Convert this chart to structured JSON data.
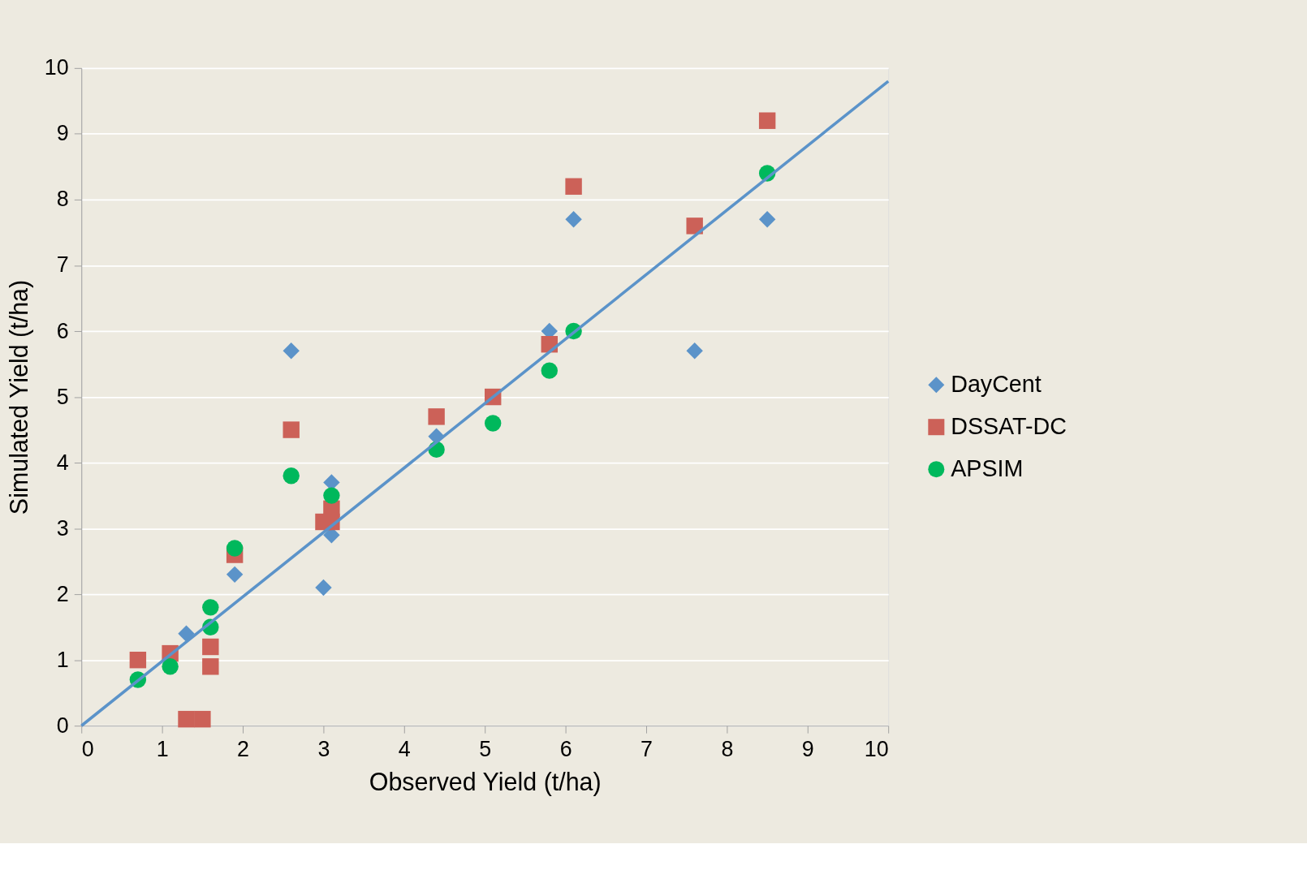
{
  "chart_data": {
    "type": "scatter",
    "xlabel": "Observed Yield (t/ha)",
    "ylabel": "Simulated Yield (t/ha)",
    "xlim": [
      0,
      10
    ],
    "ylim": [
      0,
      10
    ],
    "xticks": [
      0,
      1,
      2,
      3,
      4,
      5,
      6,
      7,
      8,
      9,
      10
    ],
    "yticks": [
      0,
      1,
      2,
      3,
      4,
      5,
      6,
      7,
      8,
      9,
      10
    ],
    "grid": "y",
    "legend": "right",
    "series": [
      {
        "name": "DayCent",
        "color": "#5b93c9",
        "marker": "diamond",
        "x": [
          1.3,
          1.9,
          2.6,
          3.0,
          3.1,
          3.1,
          4.4,
          5.8,
          6.1,
          7.6,
          8.5
        ],
        "values": [
          1.4,
          2.3,
          5.7,
          2.1,
          3.7,
          2.9,
          4.4,
          6.0,
          7.7,
          5.7,
          7.7
        ]
      },
      {
        "name": "DSSAT-DC",
        "color": "#cc6158",
        "marker": "square",
        "x": [
          0.7,
          1.1,
          1.3,
          1.5,
          1.6,
          1.6,
          1.9,
          2.6,
          3.0,
          3.1,
          3.1,
          4.4,
          5.1,
          5.8,
          6.1,
          7.6,
          8.5
        ],
        "values": [
          1.0,
          1.1,
          0.1,
          0.1,
          1.2,
          0.9,
          2.6,
          4.5,
          3.1,
          3.1,
          3.3,
          4.7,
          5.0,
          5.8,
          8.2,
          7.6,
          9.2
        ]
      },
      {
        "name": "APSIM",
        "color": "#00b85c",
        "marker": "circle",
        "x": [
          0.7,
          1.1,
          1.6,
          1.6,
          1.9,
          2.6,
          3.1,
          4.4,
          5.1,
          5.8,
          6.1,
          8.5
        ],
        "values": [
          0.7,
          0.9,
          1.5,
          1.8,
          2.7,
          3.8,
          3.5,
          4.2,
          4.6,
          5.4,
          6.0,
          8.4
        ]
      },
      {
        "type": "line",
        "color": "#5b93c9",
        "marker": "none",
        "line_style": "solid",
        "x": [
          0,
          10
        ],
        "values": [
          0,
          9.8
        ]
      }
    ]
  }
}
